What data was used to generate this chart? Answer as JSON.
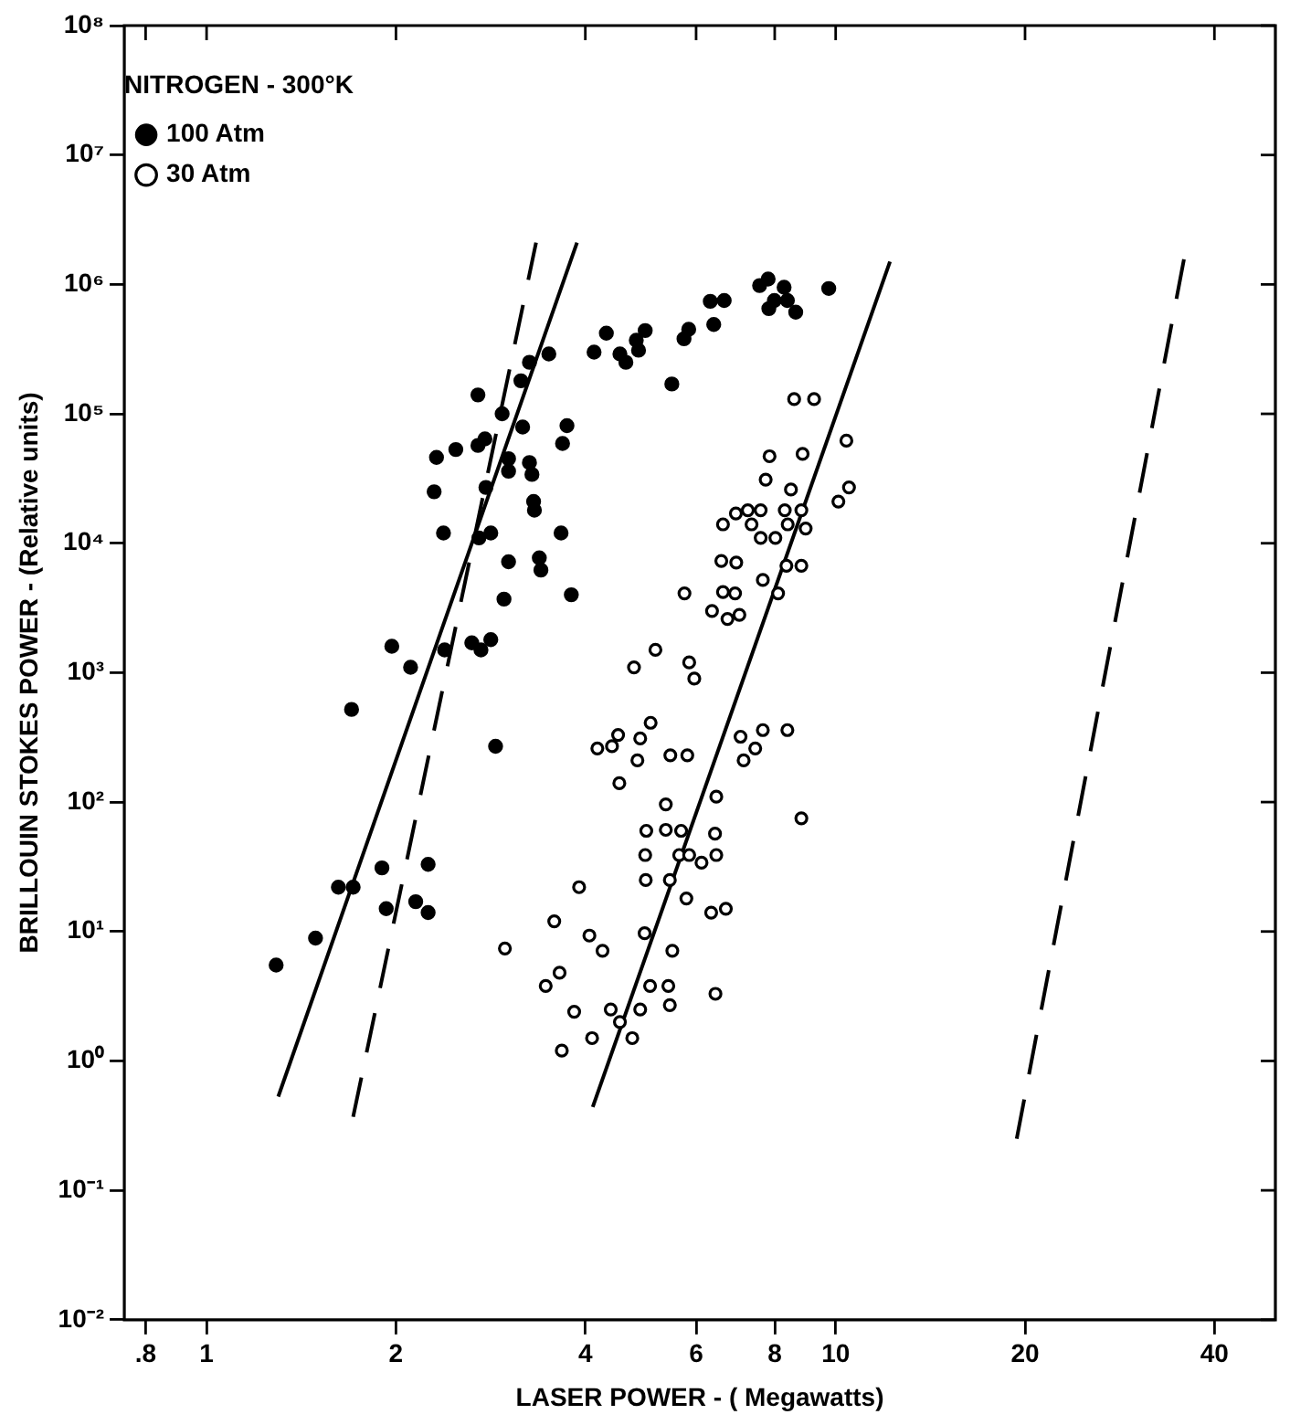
{
  "chart_data": {
    "type": "scatter",
    "xlabel": "LASER POWER - ( Megawatts)",
    "ylabel": "BRILLOUIN STOKES POWER - (Relative units)",
    "legend_title": "NITROGEN - 300°K",
    "legend": "top left",
    "log": "xy",
    "grid": false,
    "xlim": [
      0.74,
      50
    ],
    "xticks": [
      {
        "value": 0.8,
        "label": ".8"
      },
      1,
      2,
      4,
      6,
      8,
      10,
      20,
      40
    ],
    "ylim": [
      0.01,
      100000000
    ],
    "yticks": [
      {
        "value": 0.01,
        "label": "10⁻²"
      },
      {
        "value": 0.1,
        "label": "10⁻¹"
      },
      {
        "value": 1,
        "label": "10⁰"
      },
      {
        "value": 10,
        "label": "10¹"
      },
      {
        "value": 100,
        "label": "10²"
      },
      {
        "value": 1000,
        "label": "10³"
      },
      {
        "value": 10000,
        "label": "10⁴"
      },
      {
        "value": 100000,
        "label": "10⁵"
      },
      {
        "value": 1000000,
        "label": "10⁶"
      },
      {
        "value": 10000000,
        "label": "10⁷"
      },
      {
        "value": 100000000,
        "label": "10⁸"
      }
    ],
    "series": [
      {
        "name": "100 Atm",
        "color": "#000000",
        "marker": "circle",
        "x": [
          2.7,
          2.95,
          3.16,
          3.18,
          2.7,
          2.77,
          2.49,
          2.32,
          3.02,
          3.02,
          2.3,
          2.78,
          2.38,
          2.71,
          2.83,
          3.02,
          2.97,
          1.97,
          2.11,
          2.39,
          2.64,
          2.73,
          2.83,
          1.7,
          2.88,
          1.9,
          2.25,
          1.62,
          1.71,
          2.15,
          1.93,
          2.25,
          1.49,
          1.29,
          6.32,
          6.65,
          4.32,
          4.98,
          4.82,
          4.86,
          4.64,
          4.54,
          4.13,
          5.84,
          5.74,
          6.4,
          5.49,
          3.5,
          3.26,
          3.74,
          3.68,
          3.26,
          3.29,
          3.31,
          3.32,
          3.66,
          3.38,
          3.4,
          3.8,
          7.57,
          7.81,
          8.28,
          7.99,
          8.38,
          7.83,
          8.64,
          9.75
        ],
        "values": [
          140000,
          100000,
          180000,
          79000,
          57000,
          64000,
          53000,
          46000,
          45000,
          36000,
          25000,
          27000,
          12000,
          11000,
          12000,
          7200,
          3700,
          1600,
          1100,
          1500,
          1700,
          1500,
          1800,
          520,
          270,
          31,
          33,
          22,
          22,
          17,
          15,
          14,
          8.9,
          5.5,
          740000,
          750000,
          420000,
          440000,
          370000,
          310000,
          250000,
          290000,
          300000,
          450000,
          380000,
          490000,
          170000,
          290000,
          250000,
          81000,
          59000,
          42000,
          34000,
          21000,
          18000,
          12000,
          7700,
          6200,
          4000,
          980000,
          1100000,
          950000,
          750000,
          750000,
          650000,
          610000,
          930000
        ]
      },
      {
        "name": "30 Atm",
        "color": "#000000",
        "marker": "circle",
        "x": [
          2.98,
          6.62,
          6.58,
          6.62,
          5.75,
          6.36,
          5.17,
          4.78,
          5.85,
          5.96,
          5.08,
          4.51,
          4.41,
          4.18,
          4.89,
          4.84,
          5.46,
          5.81,
          4.53,
          5.37,
          6.46,
          5.0,
          5.37,
          5.68,
          8.59,
          9.24,
          10.4,
          7.85,
          8.86,
          7.74,
          8.49,
          10.5,
          10.1,
          6.94,
          7.25,
          7.6,
          8.3,
          8.82,
          7.35,
          8.39,
          8.96,
          7.6,
          8.02,
          6.95,
          8.35,
          8.82,
          7.66,
          6.43,
          4.98,
          5.64,
          5.85,
          6.12,
          6.46,
          4.99,
          5.45,
          3.91,
          5.79,
          6.34,
          6.69,
          3.57,
          4.06,
          4.26,
          4.97,
          5.5,
          3.64,
          3.46,
          5.07,
          5.42,
          6.44,
          3.84,
          4.39,
          4.89,
          5.45,
          4.54,
          4.1,
          4.75,
          3.67,
          6.92,
          6.73,
          7.03,
          8.1,
          7.06,
          7.66,
          8.38,
          7.45,
          7.14,
          8.82
        ],
        "values": [
          7.4,
          14000,
          7300,
          4200,
          4100,
          3000,
          1500,
          1100,
          1200,
          900,
          410,
          330,
          270,
          260,
          310,
          210,
          230,
          230,
          140,
          96,
          110,
          60,
          61,
          60,
          130000,
          130000,
          62000,
          47000,
          49000,
          31000,
          26000,
          27000,
          21000,
          17000,
          18000,
          18000,
          18000,
          18000,
          14000,
          14000,
          13000,
          11000,
          11000,
          7100,
          6700,
          6700,
          5200,
          57,
          39,
          39,
          39,
          34,
          39,
          25,
          25,
          22,
          18,
          14,
          15,
          12,
          9.3,
          7.1,
          9.7,
          7.1,
          4.8,
          3.8,
          3.8,
          3.8,
          3.3,
          2.4,
          2.5,
          2.5,
          2.7,
          2.0,
          1.5,
          1.5,
          1.2,
          4100,
          2600,
          2800,
          4100,
          320,
          360,
          360,
          260,
          210,
          75
        ]
      },
      {
        "type": "line",
        "color": "#000000",
        "marker": "none",
        "line_style": "solid",
        "x": [
          1.3,
          3.88
        ],
        "values": [
          0.53,
          2100000
        ]
      },
      {
        "type": "line",
        "color": "#000000",
        "marker": "none",
        "line_style": "dashed",
        "x": [
          1.71,
          3.34
        ],
        "values": [
          0.37,
          2100000
        ]
      },
      {
        "type": "line",
        "color": "#000000",
        "marker": "none",
        "line_style": "solid",
        "x": [
          4.11,
          12.2
        ],
        "values": [
          0.44,
          1500000
        ]
      },
      {
        "type": "line",
        "color": "#000000",
        "marker": "none",
        "line_style": "dashed",
        "x": [
          19.4,
          35.9
        ],
        "values": [
          0.25,
          1700000
        ]
      }
    ]
  }
}
